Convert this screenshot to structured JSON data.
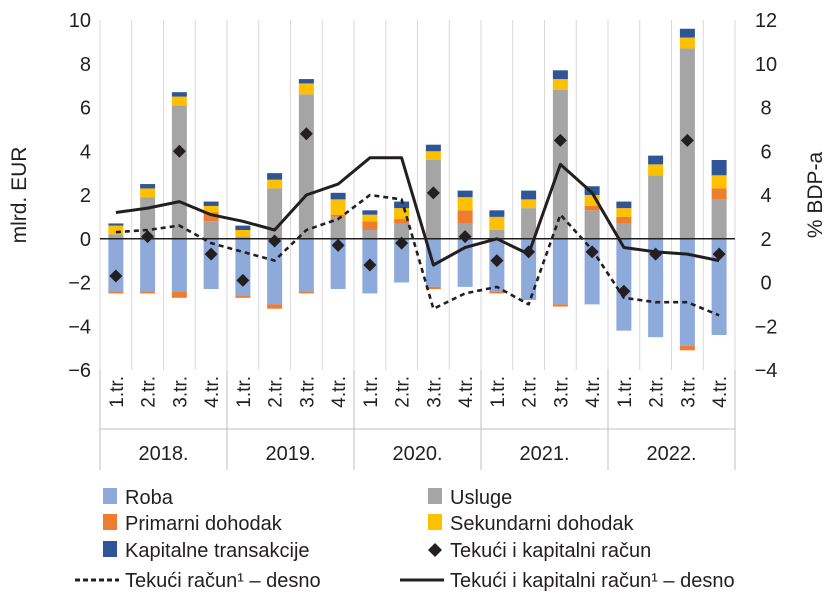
{
  "chart_data": {
    "type": "bar",
    "ylabel_left": "mlrd. EUR",
    "ylabel_right": "% BDP-a",
    "ylim_left": [
      -6,
      10
    ],
    "yticks_left": [
      "−6",
      "−4",
      "−2",
      "0",
      "2",
      "4",
      "6",
      "8",
      "10"
    ],
    "ylim_right": [
      -4,
      12
    ],
    "yticks_right": [
      "−4",
      "−2",
      "0",
      "2",
      "4",
      "6",
      "8",
      "10",
      "12"
    ],
    "quarters": [
      "1.tr.",
      "2.tr.",
      "3.tr.",
      "4.tr.",
      "1.tr.",
      "2.tr.",
      "3.tr.",
      "4.tr.",
      "1.tr.",
      "2.tr.",
      "3.tr.",
      "4.tr.",
      "1.tr.",
      "2.tr.",
      "3.tr.",
      "4.tr.",
      "1.tr.",
      "2.tr.",
      "3.tr.",
      "4.tr."
    ],
    "years": [
      "2018.",
      "2019.",
      "2020.",
      "2021.",
      "2022."
    ],
    "colors": {
      "roba": "#8eaadb",
      "usluge": "#a5a5a5",
      "primarni": "#ed7d31",
      "sekundarni": "#ffc000",
      "kapitalne": "#2f5597",
      "marker": "#231f20",
      "line": "#231f20"
    },
    "series": [
      {
        "name": "Roba",
        "key": "roba",
        "values": [
          -2.4,
          -2.4,
          -2.4,
          -2.3,
          -2.6,
          -3.0,
          -2.4,
          -2.3,
          -2.5,
          -2.0,
          -2.2,
          -2.2,
          -2.4,
          -2.8,
          -3.0,
          -3.0,
          -4.2,
          -4.5,
          -4.9,
          -4.4
        ]
      },
      {
        "name": "Usluge",
        "key": "usluge",
        "values": [
          0.2,
          1.9,
          6.1,
          0.8,
          0.1,
          2.3,
          6.6,
          1.0,
          0.4,
          0.7,
          3.6,
          0.7,
          0.4,
          1.4,
          6.8,
          1.3,
          0.7,
          2.9,
          8.7,
          1.8
        ]
      },
      {
        "name": "Primarni dohodak",
        "key": "primarni",
        "values": [
          -0.1,
          -0.1,
          -0.3,
          0.4,
          -0.1,
          -0.2,
          -0.1,
          0.1,
          0.4,
          0.2,
          -0.1,
          0.6,
          -0.1,
          0.0,
          -0.1,
          0.2,
          0.3,
          0.0,
          -0.2,
          0.5
        ]
      },
      {
        "name": "Sekundarni dohodak",
        "key": "sekundarni",
        "values": [
          0.4,
          0.4,
          0.4,
          0.3,
          0.3,
          0.4,
          0.5,
          0.7,
          0.3,
          0.5,
          0.4,
          0.6,
          0.6,
          0.4,
          0.5,
          0.5,
          0.4,
          0.5,
          0.5,
          0.6
        ]
      },
      {
        "name": "Kapitalne transakcije",
        "key": "kapitalne",
        "values": [
          0.1,
          0.2,
          0.2,
          0.2,
          0.2,
          0.3,
          0.2,
          0.3,
          0.2,
          0.3,
          0.3,
          0.3,
          0.3,
          0.4,
          0.4,
          0.4,
          0.3,
          0.4,
          0.4,
          0.7
        ]
      }
    ],
    "markers": {
      "name": "Tekući i kapitalni račun",
      "values": [
        -1.7,
        0.1,
        4.0,
        -0.7,
        -1.9,
        -0.1,
        4.8,
        -0.3,
        -1.2,
        -0.2,
        2.1,
        0.1,
        -1.0,
        -0.6,
        4.5,
        -0.6,
        -2.4,
        -0.7,
        4.5,
        -0.7
      ]
    },
    "lines": [
      {
        "name": "Tekući račun¹ – desno",
        "style": "dashed",
        "values": [
          2.3,
          2.4,
          2.6,
          1.8,
          1.4,
          1.0,
          2.4,
          2.9,
          4.0,
          3.8,
          -1.2,
          -0.5,
          -0.2,
          -1.0,
          3.1,
          1.5,
          -0.7,
          -0.9,
          -0.9,
          -1.5
        ]
      },
      {
        "name": "Tekući i kapitalni račun¹ – desno",
        "style": "solid",
        "values": [
          3.2,
          3.4,
          3.7,
          3.1,
          2.8,
          2.4,
          4.0,
          4.5,
          5.7,
          5.7,
          0.8,
          1.6,
          2.0,
          1.3,
          5.4,
          4.1,
          1.6,
          1.4,
          1.3,
          1.0
        ]
      }
    ],
    "legend": [
      {
        "key": "roba",
        "kind": "box",
        "label": "Roba"
      },
      {
        "key": "usluge",
        "kind": "box",
        "label": "Usluge"
      },
      {
        "key": "primarni",
        "kind": "box",
        "label": "Primarni dohodak"
      },
      {
        "key": "sekundarni",
        "kind": "box",
        "label": "Sekundarni dohodak"
      },
      {
        "key": "kapitalne",
        "kind": "box",
        "label": "Kapitalne transakcije"
      },
      {
        "key": "marker",
        "kind": "diamond",
        "label": "Tekući i kapitalni račun"
      },
      {
        "key": "line",
        "kind": "dashed",
        "label": "Tekući račun¹ – desno"
      },
      {
        "key": "line",
        "kind": "solid",
        "label": "Tekući i kapitalni račun¹ – desno"
      }
    ]
  }
}
